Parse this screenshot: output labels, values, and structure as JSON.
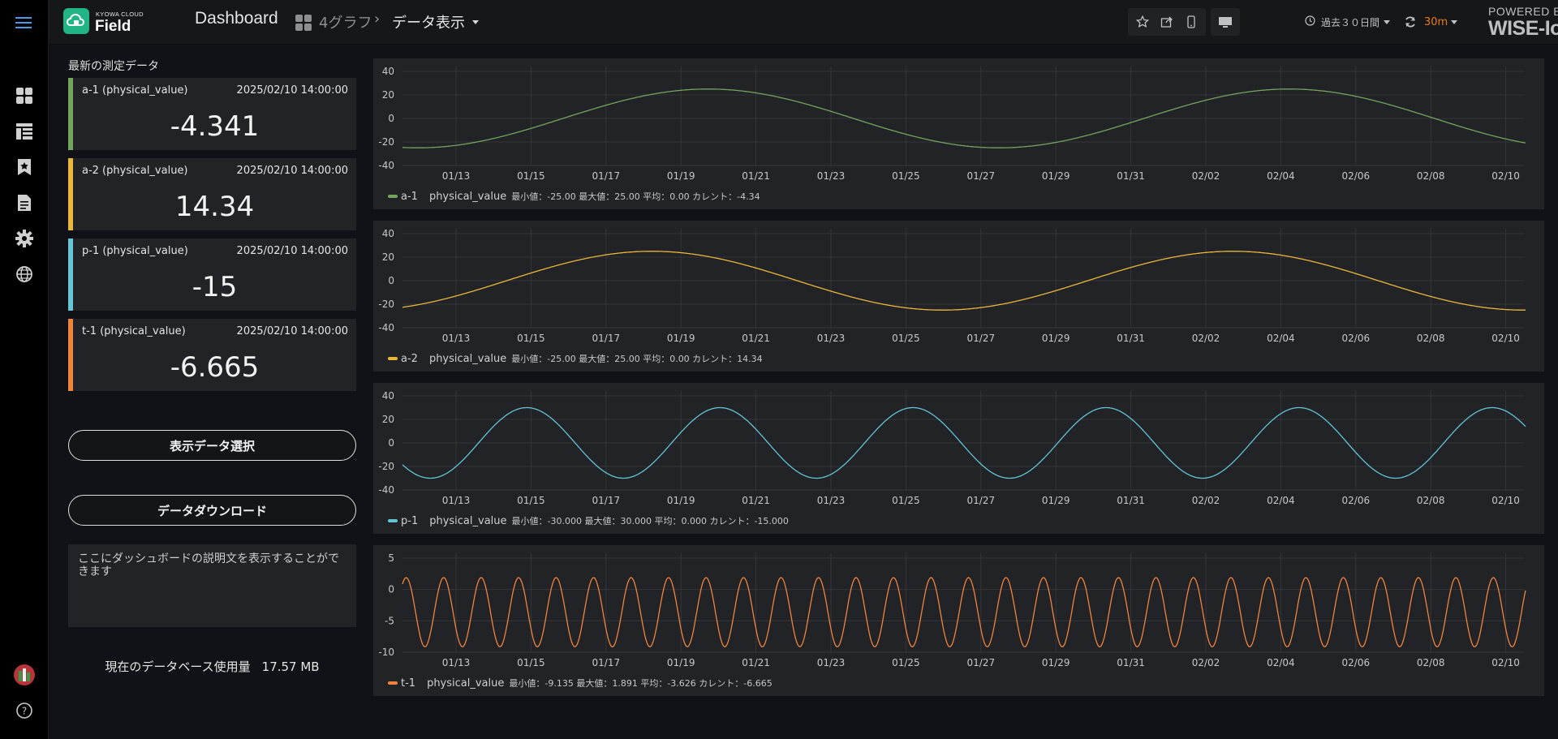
{
  "app": {
    "logo_small": "KYOWA CLOUD",
    "logo_big": "Field",
    "dashboard_title": "Dashboard",
    "folder": "4グラフ",
    "page": "データ表示",
    "time_range": "過去３０日間",
    "refresh_interval": "30m",
    "powered_by_line1": "POWERED BY",
    "powered_by_line2": "WISE-IoT"
  },
  "nav": {
    "icons": [
      "menu-icon",
      "dashboards-icon",
      "layout-icon",
      "bookmark-icon",
      "document-icon",
      "gear-icon",
      "globe-icon",
      "user-avatar-icon",
      "help-icon"
    ]
  },
  "toolbar": {
    "icons": [
      "star-icon",
      "share-icon",
      "mobile-icon",
      "monitor-icon",
      "clock-icon",
      "refresh-icon"
    ]
  },
  "latest": {
    "title": "最新の測定データ",
    "items": [
      {
        "name": "a-1 (physical_value)",
        "time": "2025/02/10 14:00:00",
        "value": "-4.341",
        "color": "#73a55c"
      },
      {
        "name": "a-2 (physical_value)",
        "time": "2025/02/10 14:00:00",
        "value": "14.34",
        "color": "#eab839"
      },
      {
        "name": "p-1 (physical_value)",
        "time": "2025/02/10 14:00:00",
        "value": "-15",
        "color": "#63c5d6"
      },
      {
        "name": "t-1 (physical_value)",
        "time": "2025/02/10 14:00:00",
        "value": "-6.665",
        "color": "#ef843c"
      }
    ]
  },
  "buttons": {
    "select_data": "表示データ選択",
    "download": "データダウンロード"
  },
  "description": "ここにダッシュボードの説明文を表示することができます",
  "db_usage": {
    "label": "現在のデータベース使用量",
    "value": "17.57 MB"
  },
  "chart_data": [
    {
      "type": "line",
      "x_ticks": [
        "01/13",
        "01/15",
        "01/17",
        "01/19",
        "01/21",
        "01/23",
        "01/25",
        "01/27",
        "01/29",
        "01/31",
        "02/02",
        "02/04",
        "02/06",
        "02/08",
        "02/10"
      ],
      "y_ticks": [
        "40",
        "20",
        "0",
        "-20",
        "-40"
      ],
      "ylim": [
        -40,
        40
      ],
      "series": [
        {
          "name": "a-1",
          "color": "#73a55c",
          "amplitude": 25,
          "offset": 0,
          "period_days": 15.5,
          "phase_days": 2.85,
          "current": -4.34
        }
      ],
      "legend": {
        "name": "a-1",
        "field": "physical_value",
        "stats": "最小値：-25.00 最大値：25.00 平均：0.00 カレント：-4.34"
      }
    },
    {
      "type": "line",
      "x_ticks": [
        "01/13",
        "01/15",
        "01/17",
        "01/19",
        "01/21",
        "01/23",
        "01/25",
        "01/27",
        "01/29",
        "01/31",
        "02/02",
        "02/04",
        "02/06",
        "02/08",
        "02/10"
      ],
      "y_ticks": [
        "40",
        "20",
        "0",
        "-20",
        "-40"
      ],
      "ylim": [
        -40,
        40
      ],
      "series": [
        {
          "name": "a-2",
          "color": "#eab839",
          "amplitude": 25,
          "offset": 0,
          "period_days": 15.5,
          "phase_days": 1.35,
          "current": 14.34
        }
      ],
      "legend": {
        "name": "a-2",
        "field": "physical_value",
        "stats": "最小値：-25.00 最大値：25.00 平均：0.00 カレント：14.34"
      }
    },
    {
      "type": "line",
      "x_ticks": [
        "01/13",
        "01/15",
        "01/17",
        "01/19",
        "01/21",
        "01/23",
        "01/25",
        "01/27",
        "01/29",
        "01/31",
        "02/02",
        "02/04",
        "02/06",
        "02/08",
        "02/10"
      ],
      "y_ticks": [
        "40",
        "20",
        "0",
        "-20",
        "-40"
      ],
      "ylim": [
        -40,
        40
      ],
      "series": [
        {
          "name": "p-1",
          "color": "#63c5d6",
          "amplitude": 30,
          "offset": 0,
          "period_days": 5.15,
          "phase_days": 0.6,
          "current": -15
        }
      ],
      "legend": {
        "name": "p-1",
        "field": "physical_value",
        "stats": "最小値：-30.000 最大値：30.000 平均：0.000 カレント：-15.000"
      }
    },
    {
      "type": "line",
      "x_ticks": [
        "01/13",
        "01/15",
        "01/17",
        "01/19",
        "01/21",
        "01/23",
        "01/25",
        "01/27",
        "01/29",
        "01/31",
        "02/02",
        "02/04",
        "02/06",
        "02/08",
        "02/10"
      ],
      "y_ticks": [
        "5",
        "0",
        "-5",
        "-10"
      ],
      "ylim": [
        -10,
        5
      ],
      "series": [
        {
          "name": "t-1",
          "color": "#ef843c",
          "amplitude": 5.513,
          "offset": -3.622,
          "period_days": 1,
          "phase_days": 0.42,
          "current": -6.665
        }
      ],
      "legend": {
        "name": "t-1",
        "field": "physical_value",
        "stats": "最小値：-9.135 最大値：1.891 平均：-3.626 カレント：-6.665"
      }
    }
  ]
}
